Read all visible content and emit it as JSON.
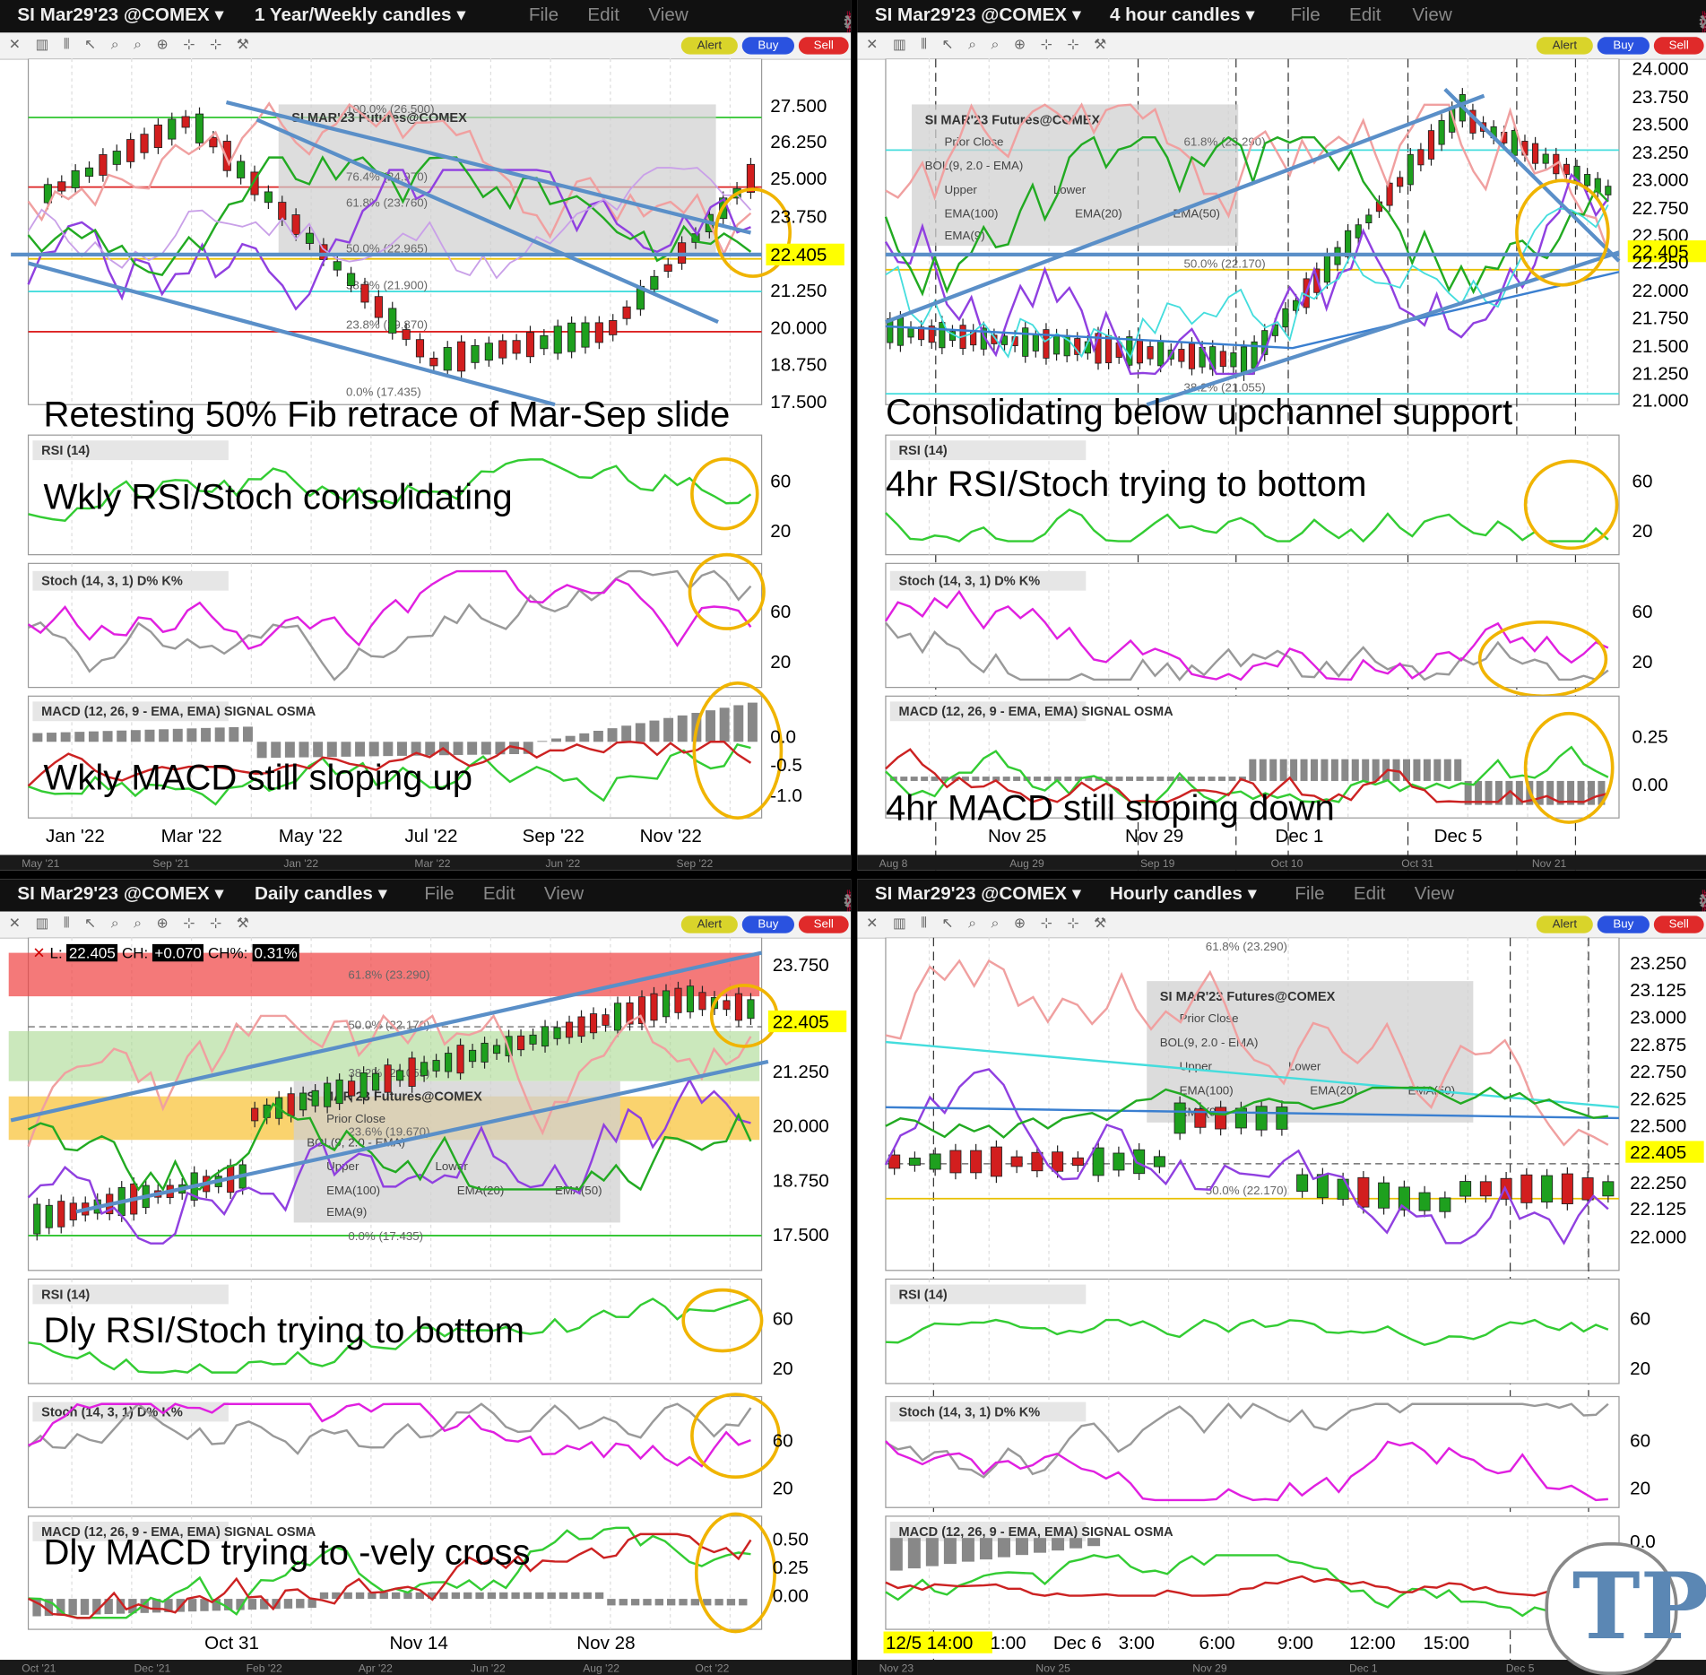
{
  "colors": {
    "bull": "#1ea01e",
    "bear": "#d21e1e",
    "annotation_circle": "#f0b400",
    "trend": "#5a8fc8",
    "price_tag": "#ffff00"
  },
  "common": {
    "symbol": "SI Mar29'23 @COMEX",
    "menu": [
      "File",
      "Edit",
      "View"
    ],
    "buttons": {
      "alert": "Alert",
      "buy": "Buy",
      "sell": "Sell"
    },
    "quote": {
      "last_label": "L:",
      "last": "22.405",
      "ch_label": "CH:",
      "ch": "+0.070",
      "chp_label": "CH%:",
      "chp": "0.31%"
    },
    "legend_title": "SI MAR'23 Futures@COMEX",
    "legend_items": [
      "Prior Close",
      "BOL(9, 2.0 - EMA)",
      "Upper",
      "Lower",
      "EMA(100)",
      "EMA(20)",
      "EMA(50)",
      "EMA(9)"
    ],
    "rsi_label": "RSI (14)",
    "stoch_label": "Stoch (14, 3, 1)  D%  K%",
    "macd_label": "MACD (12, 26, 9 - EMA, EMA)  SIGNAL  OSMA",
    "stoch_yticks": [
      "60",
      "20"
    ],
    "rsi_yticks": [
      "60",
      "20"
    ]
  },
  "panels": [
    {
      "id": "weekly",
      "period": "1 Year/Weekly candles",
      "price_yticks": [
        "27.500",
        "26.250",
        "25.000",
        "23.750",
        "22.405",
        "21.250",
        "20.000",
        "18.750",
        "17.500"
      ],
      "fib_labels": [
        "100.0% (26.500)",
        "76.4% (24.970)",
        "61.8% (23.760)",
        "50.0% (22.965)",
        "38.2% (21.900)",
        "23.8% (19.870)",
        "0.0% (17.435)"
      ],
      "macd_yticks": [
        "0.0",
        "-0.5",
        "-1.0"
      ],
      "x_labels": [
        "Jan '22",
        "Mar '22",
        "May '22",
        "Jul '22",
        "Sep '22",
        "Nov '22"
      ],
      "scroll_labels": [
        "May '21",
        "Sep '21",
        "Jan '22",
        "Mar '22",
        "Jun '22",
        "Sep '22"
      ],
      "notes": [
        "Retesting 50% Fib retrace of Mar-Sep slide",
        "Wkly RSI/Stoch consolidating",
        "Wkly MACD still sloping up"
      ]
    },
    {
      "id": "4hour",
      "period": "4 hour candles",
      "price_yticks": [
        "24.000",
        "23.750",
        "23.500",
        "23.250",
        "23.000",
        "22.750",
        "22.500",
        "22.405",
        "22.250",
        "22.000",
        "21.750",
        "21.500",
        "21.250",
        "21.000"
      ],
      "fib_labels": [
        "61.8% (23.290)",
        "50.0% (22.170)",
        "38.2% (21.055)"
      ],
      "macd_yticks": [
        "0.25",
        "0.00"
      ],
      "x_labels": [
        "Nov 25",
        "Nov 29",
        "Dec 1",
        "Dec 5"
      ],
      "scroll_labels": [
        "Aug 8",
        "Aug 29",
        "Sep 19",
        "Oct 10",
        "Oct 31",
        "Nov 21"
      ],
      "notes": [
        "Consolidating below upchannel support",
        "4hr RSI/Stoch trying to bottom",
        "4hr MACD still sloping down"
      ]
    },
    {
      "id": "daily",
      "period": "Daily candles",
      "price_yticks": [
        "23.750",
        "22.405",
        "21.250",
        "20.000",
        "18.750",
        "17.500"
      ],
      "fib_labels": [
        "61.8% (23.290)",
        "50.0% (22.170)",
        "38.2% (21.055)",
        "23.6% (19.670)",
        "0.0% (17.435)"
      ],
      "macd_yticks": [
        "0.50",
        "0.25",
        "0.00"
      ],
      "x_labels": [
        "Oct 31",
        "Nov 14",
        "Nov 28"
      ],
      "scroll_labels": [
        "Oct '21",
        "Dec '21",
        "Feb '22",
        "Apr '22",
        "Jun '22",
        "Aug '22",
        "Oct '22"
      ],
      "notes": [
        "Dly RSI/Stoch trying to bottom",
        "Dly MACD trying to -vely cross"
      ]
    },
    {
      "id": "hourly",
      "period": "Hourly candles",
      "price_yticks": [
        "23.250",
        "23.125",
        "23.000",
        "22.875",
        "22.750",
        "22.625",
        "22.500",
        "22.405",
        "22.250",
        "22.125",
        "22.000"
      ],
      "fib_labels": [
        "61.8% (23.290)",
        "50.0% (22.170)"
      ],
      "macd_yticks": [
        "0.0"
      ],
      "x_labels": [
        "12/5 14:00",
        "1:00",
        "Dec 6",
        "3:00",
        "6:00",
        "9:00",
        "12:00",
        "15:00"
      ],
      "scroll_labels": [
        "Nov 23",
        "Nov 25",
        "Nov 29",
        "Dec 1",
        "Dec 5"
      ],
      "notes": []
    }
  ]
}
